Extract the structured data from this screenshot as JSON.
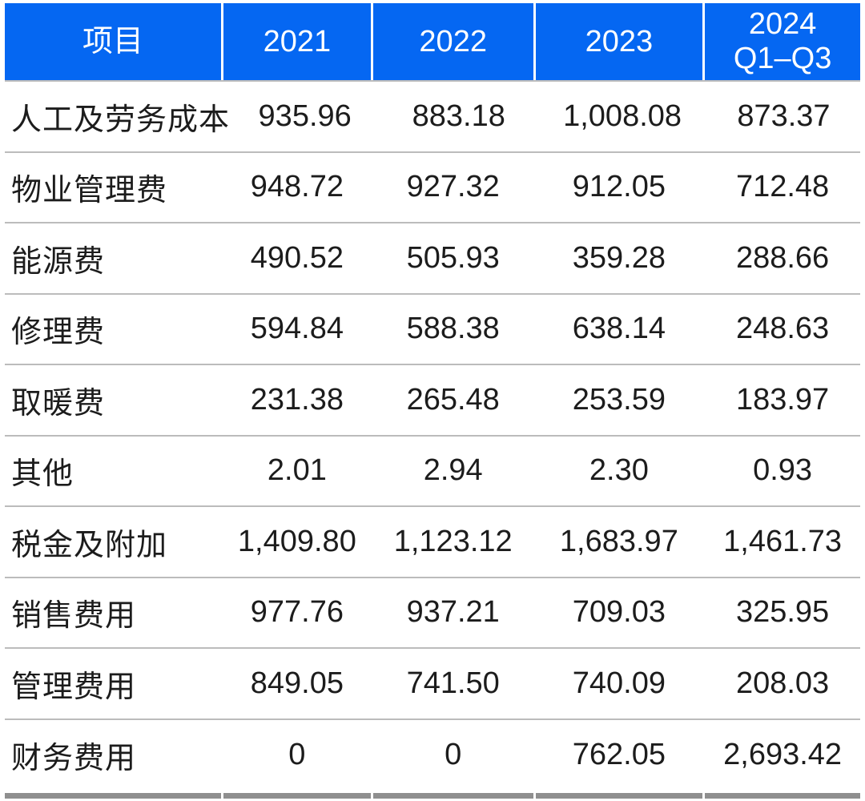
{
  "chart_data": {
    "type": "table",
    "columns": [
      "项目",
      "2021",
      "2022",
      "2023",
      "2024\nQ1–Q3"
    ],
    "rows": [
      {
        "item": "人工及劳务成本",
        "values": [
          "935.96",
          "883.18",
          "1,008.08",
          "873.37"
        ]
      },
      {
        "item": "物业管理费",
        "values": [
          "948.72",
          "927.32",
          "912.05",
          "712.48"
        ]
      },
      {
        "item": "能源费",
        "values": [
          "490.52",
          "505.93",
          "359.28",
          "288.66"
        ]
      },
      {
        "item": "修理费",
        "values": [
          "594.84",
          "588.38",
          "638.14",
          "248.63"
        ]
      },
      {
        "item": "取暖费",
        "values": [
          "231.38",
          "265.48",
          "253.59",
          "183.97"
        ]
      },
      {
        "item": "其他",
        "values": [
          "2.01",
          "2.94",
          "2.30",
          "0.93"
        ]
      },
      {
        "item": "税金及附加",
        "values": [
          "1,409.80",
          "1,123.12",
          "1,683.97",
          "1,461.73"
        ]
      },
      {
        "item": "销售费用",
        "values": [
          "977.76",
          "937.21",
          "709.03",
          "325.95"
        ]
      },
      {
        "item": "管理费用",
        "values": [
          "849.05",
          "741.50",
          "740.09",
          "208.03"
        ]
      },
      {
        "item": "财务费用",
        "values": [
          "0",
          "0",
          "762.05",
          "2,693.42"
        ]
      }
    ],
    "layout": {
      "legend": "none",
      "grid": "horizontal-separators-only",
      "column_alignment": [
        "left",
        "center",
        "center",
        "center",
        "center"
      ]
    },
    "colors": {
      "header_bg": "#0567f2",
      "header_text": "#ffffff",
      "body_text": "#1c1c1c",
      "separator": "#bcbcbc",
      "bottom_strip": "#8f8f8f"
    }
  }
}
